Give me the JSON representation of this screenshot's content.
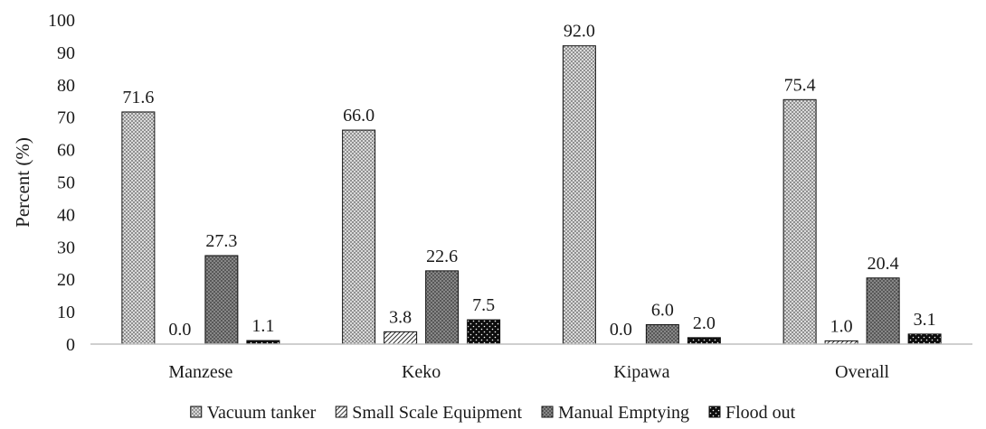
{
  "chart_data": {
    "type": "bar",
    "ylabel": "Percent (%)",
    "ylim": [
      0,
      100
    ],
    "yticks": [
      "0",
      "10",
      "20",
      "30",
      "40",
      "50",
      "60",
      "70",
      "80",
      "90",
      "100"
    ],
    "grid": false,
    "legend_position": "bottom",
    "categories": [
      "Manzese",
      "Keko",
      "Kipawa",
      "Overall"
    ],
    "series": [
      {
        "name": "Vacuum tanker",
        "values": [
          71.6,
          66.0,
          92.0,
          75.4
        ],
        "labels": [
          "71.6",
          "66.0",
          "92.0",
          "75.4"
        ],
        "pattern": "crosshatch-light"
      },
      {
        "name": "Small Scale Equipment",
        "values": [
          0.0,
          3.8,
          0.0,
          1.0
        ],
        "labels": [
          "0.0",
          "3.8",
          "0.0",
          "1.0"
        ],
        "pattern": "diagonal-stripes"
      },
      {
        "name": "Manual Emptying",
        "values": [
          27.3,
          22.6,
          6.0,
          20.4
        ],
        "labels": [
          "27.3",
          "22.6",
          "6.0",
          "20.4"
        ],
        "pattern": "dark-dotted"
      },
      {
        "name": "Flood out",
        "values": [
          1.1,
          7.5,
          2.0,
          3.1
        ],
        "labels": [
          "1.1",
          "7.5",
          "2.0",
          "3.1"
        ],
        "pattern": "black-dotted"
      }
    ]
  }
}
